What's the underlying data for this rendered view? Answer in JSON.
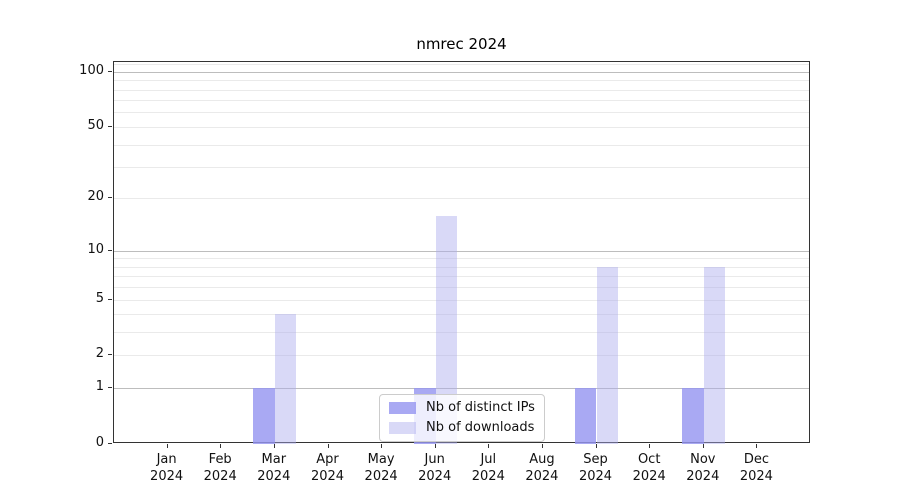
{
  "chart_data": {
    "type": "bar",
    "title": "nmrec 2024",
    "x_months": [
      "Jan",
      "Feb",
      "Mar",
      "Apr",
      "May",
      "Jun",
      "Jul",
      "Aug",
      "Sep",
      "Oct",
      "Nov",
      "Dec"
    ],
    "x_year": "2024",
    "series": [
      {
        "name": "Nb of distinct IPs",
        "color": "rgba(150,150,240,0.82)",
        "values": [
          0,
          0,
          1,
          0,
          0,
          1,
          0,
          0,
          1,
          0,
          1,
          0
        ]
      },
      {
        "name": "Nb of downloads",
        "color": "rgba(170,170,238,0.45)",
        "values": [
          0,
          0,
          4,
          0,
          0,
          16,
          0,
          0,
          8,
          0,
          8,
          0
        ]
      }
    ],
    "y_scale": "log1p",
    "ylim": [
      0,
      113
    ],
    "y_ticks": [
      "0",
      "1",
      "2",
      "5",
      "10",
      "20",
      "50",
      "100"
    ],
    "y_tick_values": [
      0,
      1,
      2,
      5,
      10,
      20,
      50,
      100
    ],
    "y_major_grid": [
      1,
      10,
      100
    ],
    "y_minor_grid": [
      2,
      3,
      4,
      5,
      6,
      7,
      8,
      9,
      20,
      30,
      40,
      50,
      60,
      70,
      80,
      90,
      110
    ],
    "grid_major_color": "#bdbdbd",
    "grid_minor_color": "#eaeaea",
    "spine_color": "#333333",
    "legend_position": "lower center"
  }
}
